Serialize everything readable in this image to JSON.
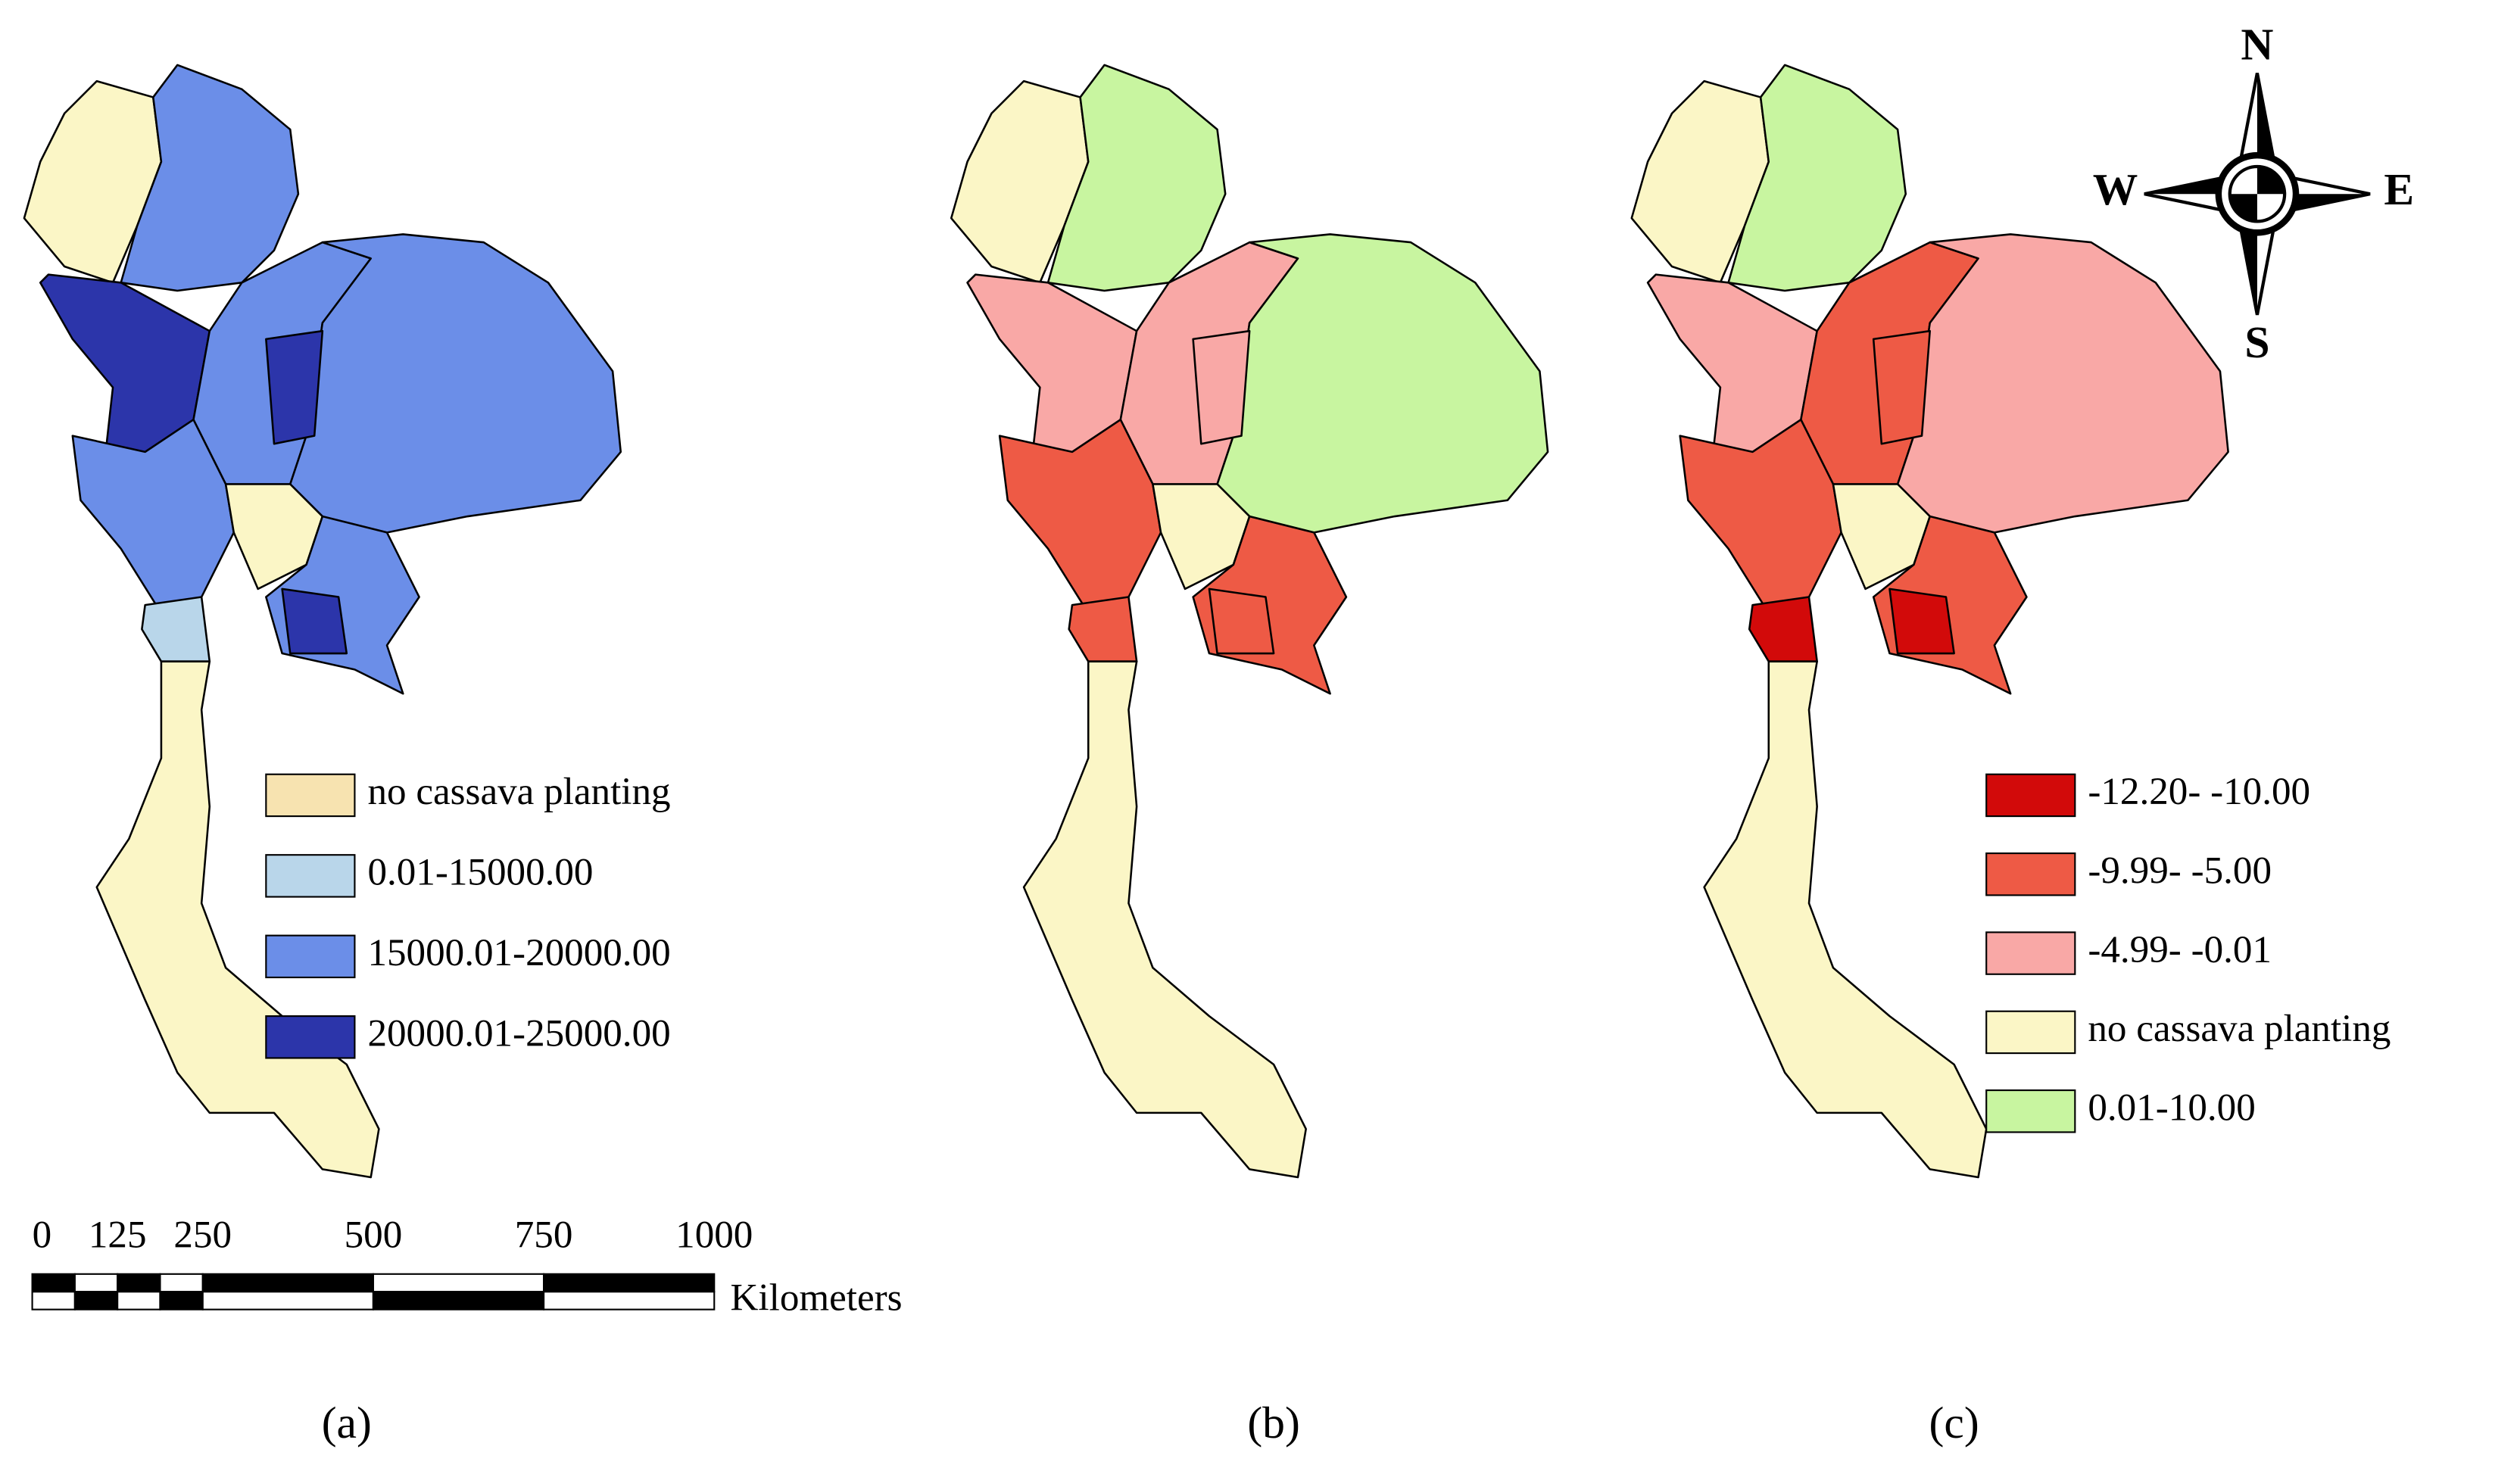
{
  "panels": [
    {
      "caption": "(a)",
      "legend": [
        {
          "label": "no cassava planting",
          "color": "#f7e3b0"
        },
        {
          "label": "0.01-15000.00",
          "color": "#b9d6ea"
        },
        {
          "label": "15000.01-20000.00",
          "color": "#6b8ee8"
        },
        {
          "label": "20000.01-25000.00",
          "color": "#2c35aa"
        }
      ]
    },
    {
      "caption": "(b)"
    },
    {
      "caption": "(c)",
      "legend": [
        {
          "label": "-12.20- -10.00",
          "color": "#d20a0a"
        },
        {
          "label": "-9.99- -5.00",
          "color": "#ee5a45"
        },
        {
          "label": "-4.99- -0.01",
          "color": "#f9a8a6"
        },
        {
          "label": "no cassava planting",
          "color": "#fbf6c6"
        },
        {
          "label": "0.01-10.00",
          "color": "#c8f5a0"
        }
      ]
    }
  ],
  "scale_bar": {
    "ticks": [
      0,
      125,
      250,
      500,
      750,
      1000
    ],
    "unit": "Kilometers"
  },
  "compass": {
    "north": "N",
    "south": "S",
    "west": "W",
    "east": "E"
  }
}
